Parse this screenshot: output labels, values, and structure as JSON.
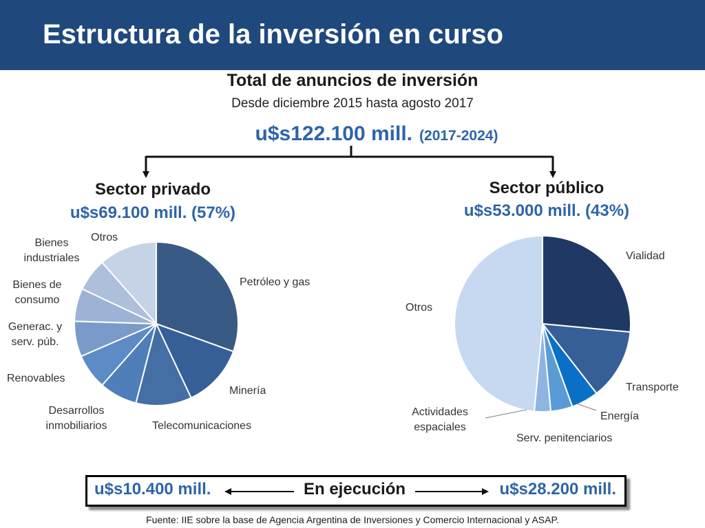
{
  "header": {
    "title": "Estructura de la inversión en curso"
  },
  "total": {
    "title": "Total de anuncios de inversión",
    "subtitle": "Desde diciembre 2015 hasta agosto 2017",
    "value": "u$s122.100 mill.",
    "period": "(2017-2024)"
  },
  "private": {
    "title": "Sector privado",
    "value": "u$s69.100 mill. (57%)"
  },
  "public": {
    "title": "Sector público",
    "value": "u$s53.000 mill. (43%)"
  },
  "execution": {
    "left": "u$s10.400 mill.",
    "label": "En ejecución",
    "right": "u$s28.200 mill."
  },
  "footer": {
    "source": "Fuente: IIE sobre la base de Agencia Argentina de Inversiones y Comercio Internacional y ASAP."
  },
  "colors": {
    "header_bg": "#1f497d",
    "accent_blue": "#2e64a8"
  },
  "chart_data": [
    {
      "type": "pie",
      "title": "",
      "slices": [
        {
          "label": "Petróleo y gas",
          "value": 30.5,
          "color": "#395a85"
        },
        {
          "label": "Minería",
          "value": 12.5,
          "color": "#365f98"
        },
        {
          "label": "Telecomunicaciones",
          "value": 11.0,
          "color": "#446fa4"
        },
        {
          "label": "Desarrollos inmobiliarios",
          "value": 7.5,
          "color": "#4f7fb8"
        },
        {
          "label": "Renovables",
          "value": 7.0,
          "color": "#5c8bc6"
        },
        {
          "label": "Generac. y serv. púb.",
          "value": 7.0,
          "color": "#7a9bc9"
        },
        {
          "label": "Bienes de consumo",
          "value": 6.5,
          "color": "#9db3d5"
        },
        {
          "label": "Bienes industriales",
          "value": 6.5,
          "color": "#aebfdc"
        },
        {
          "label": "Otros",
          "value": 11.5,
          "color": "#c6d3e6"
        }
      ]
    },
    {
      "type": "pie",
      "title": "",
      "slices": [
        {
          "label": "Vialidad",
          "value": 26.5,
          "color": "#1f3864"
        },
        {
          "label": "Transporte",
          "value": 13.0,
          "color": "#365f98"
        },
        {
          "label": "Energía",
          "value": 5.0,
          "color": "#0a70c6"
        },
        {
          "label": "Serv. penitenciarios",
          "value": 4.0,
          "color": "#5b9bd5"
        },
        {
          "label": "Actividades espaciales",
          "value": 3.0,
          "color": "#8eb4e3"
        },
        {
          "label": "Otros",
          "value": 48.5,
          "color": "#c6d9f1"
        }
      ]
    }
  ]
}
